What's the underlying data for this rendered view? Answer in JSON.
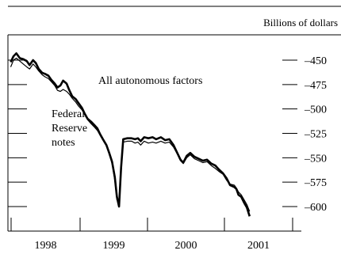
{
  "chart_data": {
    "type": "line",
    "units_label": "Billions of dollars",
    "x_ticks": [
      "1998",
      "1999",
      "2000",
      "2001"
    ],
    "y_ticks": [
      -450,
      -475,
      -500,
      -525,
      -550,
      -575,
      -600
    ],
    "y_tick_labels": [
      "–450",
      "–475",
      "–500",
      "–525",
      "–550",
      "–575",
      "–600"
    ],
    "xlim": [
      1997.78,
      2001.98
    ],
    "ylim": [
      -414,
      -620
    ],
    "grid": false,
    "series": [
      {
        "name": "All autonomous factors",
        "style": "thick",
        "color": "#000000",
        "points": [
          [
            1997.82,
            -452
          ],
          [
            1997.86,
            -446
          ],
          [
            1997.9,
            -443
          ],
          [
            1997.95,
            -448
          ],
          [
            1998.0,
            -449
          ],
          [
            1998.05,
            -451
          ],
          [
            1998.09,
            -455
          ],
          [
            1998.14,
            -450
          ],
          [
            1998.18,
            -453
          ],
          [
            1998.22,
            -459
          ],
          [
            1998.27,
            -463
          ],
          [
            1998.31,
            -464
          ],
          [
            1998.36,
            -466
          ],
          [
            1998.4,
            -470
          ],
          [
            1998.45,
            -474
          ],
          [
            1998.49,
            -478
          ],
          [
            1998.53,
            -476
          ],
          [
            1998.57,
            -471
          ],
          [
            1998.62,
            -474
          ],
          [
            1998.66,
            -481
          ],
          [
            1998.7,
            -487
          ],
          [
            1998.75,
            -490
          ],
          [
            1998.79,
            -494
          ],
          [
            1998.84,
            -499
          ],
          [
            1998.88,
            -505
          ],
          [
            1998.92,
            -510
          ],
          [
            1998.97,
            -513
          ],
          [
            1999.01,
            -516
          ],
          [
            1999.06,
            -520
          ],
          [
            1999.1,
            -526
          ],
          [
            1999.14,
            -531
          ],
          [
            1999.19,
            -537
          ],
          [
            1999.23,
            -545
          ],
          [
            1999.27,
            -554
          ],
          [
            1999.31,
            -570
          ],
          [
            1999.34,
            -590
          ],
          [
            1999.37,
            -600
          ],
          [
            1999.4,
            -560
          ],
          [
            1999.43,
            -531
          ],
          [
            1999.49,
            -530
          ],
          [
            1999.55,
            -530
          ],
          [
            1999.6,
            -531
          ],
          [
            1999.64,
            -530
          ],
          [
            1999.68,
            -533
          ],
          [
            1999.73,
            -529
          ],
          [
            1999.79,
            -530
          ],
          [
            1999.85,
            -529
          ],
          [
            1999.9,
            -531
          ],
          [
            1999.97,
            -529
          ],
          [
            2000.03,
            -532
          ],
          [
            2000.09,
            -531
          ],
          [
            2000.15,
            -537
          ],
          [
            2000.21,
            -546
          ],
          [
            2000.25,
            -552
          ],
          [
            2000.29,
            -555
          ],
          [
            2000.34,
            -548
          ],
          [
            2000.39,
            -545
          ],
          [
            2000.45,
            -549
          ],
          [
            2000.51,
            -551
          ],
          [
            2000.57,
            -553
          ],
          [
            2000.63,
            -552
          ],
          [
            2000.69,
            -556
          ],
          [
            2000.75,
            -558
          ],
          [
            2000.8,
            -562
          ],
          [
            2000.86,
            -566
          ],
          [
            2000.91,
            -571
          ],
          [
            2000.96,
            -578
          ],
          [
            2001.02,
            -580
          ],
          [
            2001.05,
            -582
          ],
          [
            2001.08,
            -588
          ],
          [
            2001.12,
            -590
          ],
          [
            2001.16,
            -596
          ],
          [
            2001.2,
            -601
          ],
          [
            2001.24,
            -610
          ]
        ]
      },
      {
        "name": "Federal Reserve notes",
        "style": "thin",
        "color": "#000000",
        "points": [
          [
            1997.82,
            -457
          ],
          [
            1997.86,
            -450
          ],
          [
            1997.9,
            -448
          ],
          [
            1997.95,
            -451
          ],
          [
            1998.0,
            -454
          ],
          [
            1998.05,
            -457
          ],
          [
            1998.09,
            -459
          ],
          [
            1998.14,
            -454
          ],
          [
            1998.18,
            -457
          ],
          [
            1998.22,
            -461
          ],
          [
            1998.27,
            -465
          ],
          [
            1998.31,
            -467
          ],
          [
            1998.36,
            -469
          ],
          [
            1998.4,
            -472
          ],
          [
            1998.45,
            -476
          ],
          [
            1998.49,
            -481
          ],
          [
            1998.53,
            -482
          ],
          [
            1998.57,
            -480
          ],
          [
            1998.62,
            -482
          ],
          [
            1998.66,
            -485
          ],
          [
            1998.7,
            -489
          ],
          [
            1998.75,
            -493
          ],
          [
            1998.79,
            -497
          ],
          [
            1998.84,
            -501
          ],
          [
            1998.88,
            -506
          ],
          [
            1998.92,
            -511
          ],
          [
            1998.97,
            -515
          ],
          [
            1999.01,
            -518
          ],
          [
            1999.06,
            -522
          ],
          [
            1999.1,
            -527
          ],
          [
            1999.14,
            -532
          ],
          [
            1999.19,
            -538
          ],
          [
            1999.23,
            -546
          ],
          [
            1999.27,
            -556
          ],
          [
            1999.31,
            -573
          ],
          [
            1999.34,
            -593
          ],
          [
            1999.37,
            -596
          ],
          [
            1999.4,
            -562
          ],
          [
            1999.43,
            -534
          ],
          [
            1999.49,
            -533
          ],
          [
            1999.55,
            -533
          ],
          [
            1999.6,
            -535
          ],
          [
            1999.64,
            -534
          ],
          [
            1999.68,
            -537
          ],
          [
            1999.73,
            -533
          ],
          [
            1999.79,
            -535
          ],
          [
            1999.85,
            -534
          ],
          [
            1999.9,
            -535
          ],
          [
            1999.97,
            -533
          ],
          [
            2000.03,
            -535
          ],
          [
            2000.09,
            -534
          ],
          [
            2000.15,
            -539
          ],
          [
            2000.21,
            -547
          ],
          [
            2000.25,
            -553
          ],
          [
            2000.29,
            -556
          ],
          [
            2000.34,
            -550
          ],
          [
            2000.39,
            -547
          ],
          [
            2000.45,
            -551
          ],
          [
            2000.51,
            -553
          ],
          [
            2000.57,
            -555
          ],
          [
            2000.63,
            -554
          ],
          [
            2000.69,
            -558
          ],
          [
            2000.75,
            -561
          ],
          [
            2000.8,
            -564
          ],
          [
            2000.86,
            -567
          ],
          [
            2000.91,
            -573
          ],
          [
            2000.96,
            -577
          ],
          [
            2001.02,
            -578
          ],
          [
            2001.05,
            -581
          ],
          [
            2001.08,
            -585
          ],
          [
            2001.12,
            -588
          ],
          [
            2001.16,
            -593
          ],
          [
            2001.2,
            -598
          ],
          [
            2001.24,
            -605
          ]
        ]
      }
    ],
    "annotations": {
      "all_autonomous": "All autonomous factors",
      "federal_reserve_line1": "Federal",
      "federal_reserve_line2": "Reserve",
      "federal_reserve_line3": "notes"
    }
  }
}
